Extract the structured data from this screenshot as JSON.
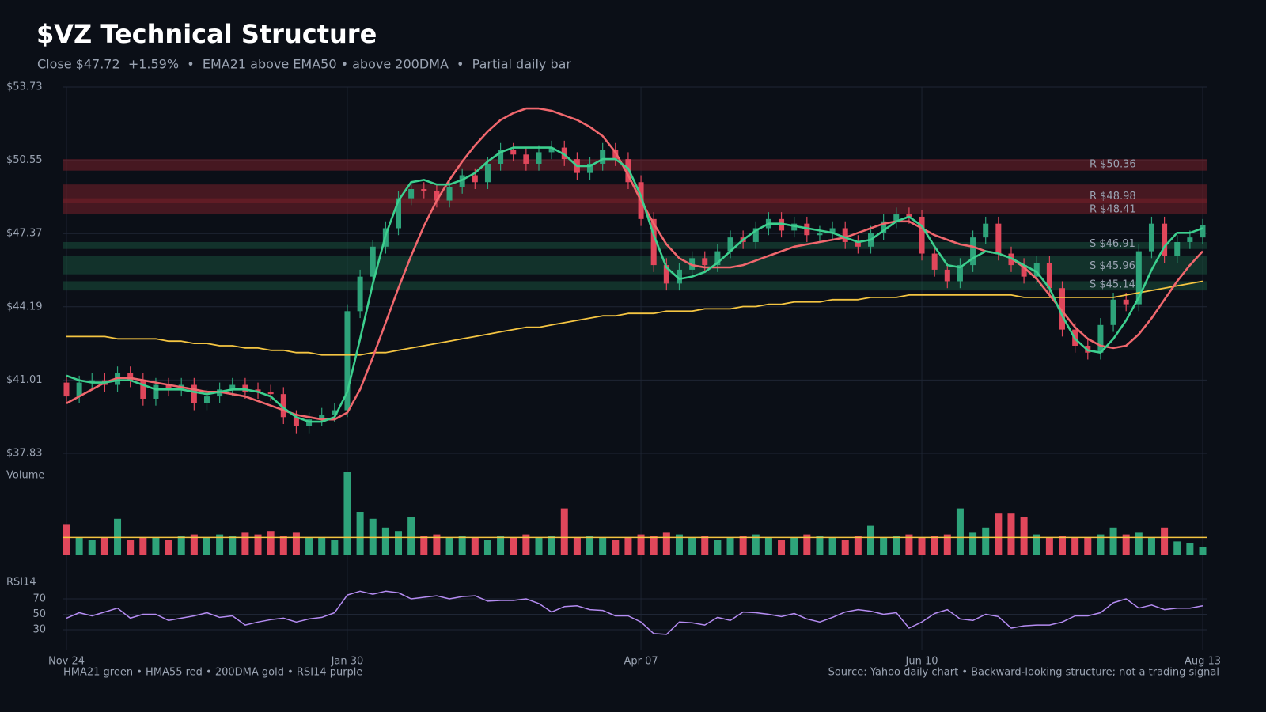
{
  "chart_data": {
    "type": "candlestick",
    "title": "$VZ Technical Structure",
    "subtitle": "Close $47.72  +1.59%  •  EMA21 above EMA50 • above 200DMA  •  Partial daily bar",
    "footer_left": "HMA21 green • HMA55 red • 200DMA gold  •  RSI14 purple",
    "footer_right": "Source: Yahoo daily chart • Backward-looking structure; not a trading signal",
    "up_color": "#2ea37a",
    "down_color": "#e0475b",
    "xlim": [
      0,
      89
    ],
    "xticks": [
      {
        "value": 0,
        "label": "Nov 24"
      },
      {
        "value": 22,
        "label": "Jan 30"
      },
      {
        "value": 45,
        "label": "Apr 07"
      },
      {
        "value": 67,
        "label": "Jun 10"
      },
      {
        "value": 89,
        "label": "Aug 13"
      }
    ],
    "ylim": [
      37.83,
      53.73
    ],
    "yticks": [
      {
        "value": 53.73,
        "label": "$53.73"
      },
      {
        "value": 50.55,
        "label": "$50.55"
      },
      {
        "value": 47.37,
        "label": "$47.37"
      },
      {
        "value": 44.19,
        "label": "$44.19"
      },
      {
        "value": 41.01,
        "label": "$41.01"
      },
      {
        "value": 37.83,
        "label": "$37.83"
      }
    ],
    "grid": true,
    "open": [
      40.9,
      40.3,
      40.9,
      41.0,
      40.8,
      41.3,
      41.0,
      40.2,
      40.8,
      40.6,
      40.8,
      40.0,
      40.3,
      40.6,
      40.8,
      40.6,
      40.5,
      40.4,
      39.4,
      39.0,
      39.3,
      39.5,
      39.7,
      44.0,
      45.5,
      46.8,
      47.6,
      48.9,
      49.3,
      49.2,
      48.8,
      49.4,
      49.9,
      49.6,
      50.4,
      51.0,
      50.8,
      50.4,
      50.9,
      51.1,
      50.6,
      50.0,
      50.4,
      51.0,
      50.6,
      49.6,
      48.0,
      46.0,
      45.2,
      45.8,
      46.3,
      46.0,
      46.6,
      47.2,
      47.0,
      47.6,
      48.0,
      47.5,
      47.8,
      47.3,
      47.4,
      47.6,
      47.0,
      46.8,
      47.4,
      47.9,
      48.2,
      48.1,
      46.5,
      45.8,
      45.3,
      46.0,
      47.2,
      47.8,
      46.5,
      46.0,
      45.5,
      46.1,
      45.0,
      43.2,
      42.5,
      42.2,
      43.4,
      44.5,
      44.3,
      46.6,
      47.8,
      46.4,
      47.0,
      47.2
    ],
    "high": [
      41.2,
      41.2,
      41.3,
      41.3,
      41.6,
      41.6,
      41.3,
      41.1,
      41.1,
      41.1,
      41.1,
      40.6,
      40.9,
      41.1,
      41.1,
      40.9,
      40.8,
      40.7,
      39.7,
      39.6,
      39.8,
      40.0,
      44.3,
      45.8,
      47.1,
      47.9,
      49.2,
      49.6,
      49.6,
      49.5,
      49.7,
      50.2,
      50.2,
      50.7,
      51.3,
      51.3,
      51.1,
      51.2,
      51.4,
      51.4,
      50.9,
      50.7,
      51.3,
      51.3,
      50.9,
      49.9,
      48.3,
      46.3,
      46.1,
      46.6,
      46.6,
      46.9,
      47.5,
      47.5,
      47.9,
      48.3,
      48.3,
      48.1,
      48.1,
      47.7,
      47.9,
      47.9,
      47.3,
      47.7,
      48.2,
      48.5,
      48.5,
      48.4,
      46.8,
      46.1,
      46.3,
      47.5,
      48.1,
      48.1,
      46.8,
      46.3,
      46.4,
      46.4,
      45.3,
      43.5,
      42.8,
      43.7,
      44.8,
      44.8,
      46.9,
      48.1,
      48.1,
      47.3,
      47.5,
      48.0
    ],
    "low": [
      40.0,
      40.0,
      40.6,
      40.5,
      40.5,
      40.7,
      39.9,
      39.9,
      40.3,
      40.3,
      39.7,
      39.7,
      40.0,
      40.3,
      40.2,
      40.2,
      40.1,
      39.1,
      38.7,
      38.7,
      39.0,
      39.2,
      39.4,
      43.7,
      45.2,
      46.5,
      47.3,
      48.6,
      48.9,
      48.5,
      48.5,
      49.1,
      49.3,
      49.3,
      50.1,
      50.5,
      50.1,
      50.1,
      50.6,
      50.3,
      49.7,
      49.7,
      50.1,
      50.3,
      49.3,
      47.7,
      45.7,
      44.9,
      44.9,
      45.5,
      45.7,
      45.7,
      46.3,
      46.7,
      46.7,
      47.3,
      47.2,
      47.2,
      47.0,
      47.0,
      47.1,
      46.7,
      46.5,
      46.5,
      47.1,
      47.6,
      47.8,
      46.2,
      45.5,
      45.0,
      45.0,
      45.7,
      46.9,
      46.2,
      45.7,
      45.2,
      45.2,
      44.7,
      42.9,
      42.2,
      41.9,
      41.9,
      43.1,
      44.0,
      44.0,
      46.3,
      46.1,
      46.1,
      46.7,
      46.9
    ],
    "close": [
      40.3,
      40.9,
      41.0,
      40.8,
      41.3,
      41.0,
      40.2,
      40.8,
      40.6,
      40.8,
      40.0,
      40.3,
      40.6,
      40.8,
      40.5,
      40.5,
      40.4,
      39.4,
      39.0,
      39.3,
      39.5,
      39.7,
      44.0,
      45.5,
      46.8,
      47.6,
      48.9,
      49.3,
      49.2,
      48.8,
      49.4,
      49.9,
      49.6,
      50.4,
      51.0,
      50.8,
      50.4,
      50.9,
      51.1,
      50.6,
      50.0,
      50.4,
      51.0,
      50.6,
      49.6,
      48.0,
      46.0,
      45.2,
      45.8,
      46.3,
      46.0,
      46.6,
      47.2,
      47.0,
      47.6,
      48.0,
      47.5,
      47.8,
      47.3,
      47.4,
      47.6,
      47.0,
      46.8,
      47.4,
      47.9,
      48.2,
      48.1,
      46.5,
      45.8,
      45.3,
      46.0,
      47.2,
      47.8,
      46.5,
      46.0,
      45.5,
      46.1,
      45.0,
      43.2,
      42.5,
      42.2,
      43.4,
      44.5,
      44.3,
      46.6,
      47.8,
      46.4,
      47.0,
      47.2,
      47.72
    ],
    "series": [
      {
        "color": "#f5c542",
        "values": [
          42.9,
          42.9,
          42.9,
          42.9,
          42.8,
          42.8,
          42.8,
          42.8,
          42.7,
          42.7,
          42.6,
          42.6,
          42.5,
          42.5,
          42.4,
          42.4,
          42.3,
          42.3,
          42.2,
          42.2,
          42.1,
          42.1,
          42.1,
          42.1,
          42.2,
          42.2,
          42.3,
          42.4,
          42.5,
          42.6,
          42.7,
          42.8,
          42.9,
          43.0,
          43.1,
          43.2,
          43.3,
          43.3,
          43.4,
          43.5,
          43.6,
          43.7,
          43.8,
          43.8,
          43.9,
          43.9,
          43.9,
          44.0,
          44.0,
          44.0,
          44.1,
          44.1,
          44.1,
          44.2,
          44.2,
          44.3,
          44.3,
          44.4,
          44.4,
          44.4,
          44.5,
          44.5,
          44.5,
          44.6,
          44.6,
          44.6,
          44.7,
          44.7,
          44.7,
          44.7,
          44.7,
          44.7,
          44.7,
          44.7,
          44.7,
          44.6,
          44.6,
          44.6,
          44.6,
          44.6,
          44.6,
          44.6,
          44.6,
          44.7,
          44.8,
          44.9,
          45.0,
          45.1,
          45.2,
          45.3
        ]
      },
      {
        "color": "#f0676d",
        "values": [
          40.0,
          40.3,
          40.6,
          40.9,
          41.1,
          41.1,
          41.0,
          40.9,
          40.8,
          40.7,
          40.6,
          40.5,
          40.5,
          40.4,
          40.3,
          40.1,
          39.9,
          39.7,
          39.5,
          39.4,
          39.3,
          39.3,
          39.6,
          40.6,
          42.0,
          43.5,
          45.0,
          46.4,
          47.7,
          48.8,
          49.7,
          50.5,
          51.2,
          51.8,
          52.3,
          52.6,
          52.8,
          52.8,
          52.7,
          52.5,
          52.3,
          52.0,
          51.6,
          50.9,
          49.9,
          48.8,
          47.8,
          46.9,
          46.3,
          46.0,
          45.9,
          45.9,
          45.9,
          46.0,
          46.2,
          46.4,
          46.6,
          46.8,
          46.9,
          47.0,
          47.1,
          47.2,
          47.4,
          47.6,
          47.8,
          47.9,
          47.9,
          47.6,
          47.3,
          47.1,
          46.9,
          46.8,
          46.6,
          46.5,
          46.3,
          45.9,
          45.4,
          44.7,
          44.0,
          43.3,
          42.8,
          42.5,
          42.4,
          42.5,
          43.0,
          43.7,
          44.5,
          45.3,
          46.0,
          46.6
        ]
      },
      {
        "color": "#3ccf8e",
        "values": [
          41.2,
          41.0,
          40.9,
          40.9,
          41.0,
          41.0,
          40.8,
          40.6,
          40.6,
          40.6,
          40.5,
          40.4,
          40.5,
          40.6,
          40.6,
          40.5,
          40.3,
          39.8,
          39.4,
          39.2,
          39.2,
          39.4,
          40.5,
          42.8,
          45.2,
          47.3,
          48.8,
          49.6,
          49.7,
          49.5,
          49.5,
          49.7,
          50.0,
          50.5,
          50.9,
          51.1,
          51.1,
          51.1,
          51.1,
          50.8,
          50.3,
          50.3,
          50.6,
          50.6,
          50.2,
          49.0,
          47.3,
          45.9,
          45.4,
          45.5,
          45.7,
          46.1,
          46.6,
          47.1,
          47.5,
          47.8,
          47.8,
          47.7,
          47.6,
          47.5,
          47.4,
          47.2,
          47.0,
          47.1,
          47.5,
          47.9,
          48.1,
          47.7,
          46.8,
          46.0,
          45.9,
          46.3,
          46.6,
          46.5,
          46.3,
          46.0,
          45.7,
          45.0,
          43.8,
          42.8,
          42.3,
          42.2,
          42.8,
          43.6,
          44.6,
          45.8,
          46.8,
          47.4,
          47.4,
          47.6
        ]
      }
    ],
    "zones": [
      {
        "kind": "R",
        "label": "R $50.36",
        "level": 50.36,
        "lo": 50.1,
        "hi": 50.6
      },
      {
        "kind": "R",
        "label": "R $48.98",
        "level": 48.98,
        "lo": 48.7,
        "hi": 49.5
      },
      {
        "kind": "R",
        "label": "R $48.41",
        "level": 48.41,
        "lo": 48.2,
        "hi": 48.9
      },
      {
        "kind": "S",
        "label": "S $46.91",
        "level": 46.91,
        "lo": 46.7,
        "hi": 47.0
      },
      {
        "kind": "S",
        "label": "S $45.96",
        "level": 45.96,
        "lo": 45.6,
        "hi": 46.4
      },
      {
        "kind": "S",
        "label": "S $45.14",
        "level": 45.14,
        "lo": 44.9,
        "hi": 45.3
      }
    ],
    "volume": {
      "label": "Volume",
      "ylim": [
        0,
        50
      ],
      "average": 10.3,
      "average_color": "#f5c542",
      "values": [
        18,
        10,
        9,
        10,
        21,
        9,
        10,
        10,
        9,
        11,
        12,
        10,
        12,
        11,
        13,
        12,
        14,
        11,
        13,
        10,
        10,
        9,
        48,
        25,
        21,
        16,
        14,
        22,
        11,
        12,
        10,
        11,
        10,
        9,
        11,
        10,
        12,
        10,
        11,
        27,
        10,
        11,
        10,
        9,
        10,
        12,
        11,
        13,
        12,
        10,
        11,
        9,
        10,
        11,
        12,
        10,
        9,
        10,
        12,
        11,
        10,
        9,
        11,
        17,
        10,
        11,
        12,
        10,
        11,
        12,
        27,
        13,
        16,
        24,
        24,
        22,
        12,
        10,
        11,
        10,
        10,
        12,
        16,
        12,
        13,
        10,
        16,
        8,
        7,
        5
      ]
    },
    "rsi": {
      "label": "RSI14",
      "color": "#b58cf2",
      "ylim": [
        20,
        90
      ],
      "yticks": [
        70,
        50,
        30
      ],
      "values": [
        45,
        52,
        48,
        53,
        58,
        45,
        50,
        50,
        42,
        45,
        48,
        52,
        46,
        48,
        36,
        40,
        43,
        45,
        40,
        44,
        46,
        52,
        75,
        80,
        76,
        80,
        78,
        70,
        72,
        74,
        70,
        73,
        74,
        67,
        68,
        68,
        70,
        64,
        53,
        60,
        61,
        56,
        55,
        48,
        48,
        40,
        25,
        24,
        40,
        39,
        36,
        46,
        42,
        53,
        52,
        50,
        47,
        51,
        44,
        40,
        46,
        53,
        56,
        54,
        50,
        52,
        32,
        40,
        51,
        56,
        44,
        42,
        50,
        47,
        32,
        35,
        36,
        36,
        40,
        48,
        48,
        52,
        65,
        70,
        58,
        62,
        56,
        58,
        58,
        61
      ]
    }
  }
}
